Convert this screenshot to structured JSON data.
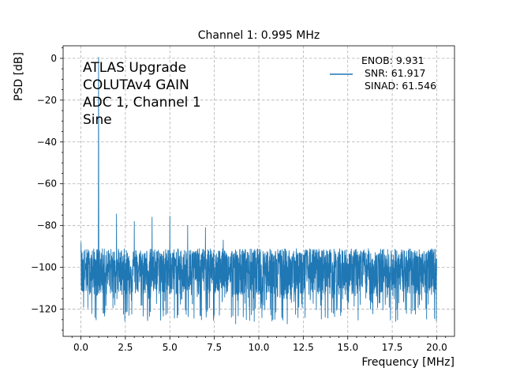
{
  "chart_data": {
    "type": "line",
    "title": "Channel 1: 0.995 MHz",
    "xlabel": "Frequency [MHz]",
    "ylabel": "PSD [dB]",
    "xlim": [
      -1.0,
      21.0
    ],
    "ylim": [
      -133,
      6
    ],
    "xticks": [
      0.0,
      2.5,
      5.0,
      7.5,
      10.0,
      12.5,
      15.0,
      17.5,
      20.0
    ],
    "xtick_labels": [
      "0.0",
      "2.5",
      "5.0",
      "7.5",
      "10.0",
      "12.5",
      "15.0",
      "17.5",
      "20.0"
    ],
    "yticks": [
      0,
      -20,
      -40,
      -60,
      -80,
      -100,
      -120
    ],
    "ytick_labels": [
      "0",
      "−20",
      "−40",
      "−60",
      "−80",
      "−100",
      "−120"
    ],
    "grid": true,
    "legend": {
      "placement": "top-right",
      "entry_lines": [
        "ENOB: 9.931",
        " SNR: 61.917",
        " SINAD: 61.546"
      ]
    },
    "annotation_lines": [
      "ATLAS Upgrade",
      "COLUTAv4 GAIN",
      "ADC 1, Channel 1",
      "Sine"
    ],
    "series": [
      {
        "color": "#1f77b4",
        "x_range": [
          0.0,
          20.0
        ],
        "noise_floor_db": -101,
        "noise_upper_db": -91,
        "noise_lower_db": -126,
        "peaks": [
          {
            "x": 0.995,
            "y": 0.5
          },
          {
            "x": 2.0,
            "y": -74.5
          },
          {
            "x": 3.0,
            "y": -78
          },
          {
            "x": 4.0,
            "y": -76
          },
          {
            "x": 5.0,
            "y": -75.5
          },
          {
            "x": 6.0,
            "y": -80
          },
          {
            "x": 7.0,
            "y": -81
          },
          {
            "x": 8.0,
            "y": -87
          }
        ],
        "min_spikes": [
          {
            "x": 0.8,
            "y": -124
          },
          {
            "x": 1.3,
            "y": -122
          },
          {
            "x": 2.6,
            "y": -121
          },
          {
            "x": 4.0,
            "y": -122
          },
          {
            "x": 6.7,
            "y": -123
          },
          {
            "x": 8.7,
            "y": -127
          },
          {
            "x": 9.3,
            "y": -125
          },
          {
            "x": 11.6,
            "y": -127
          },
          {
            "x": 12.2,
            "y": -124
          },
          {
            "x": 14.6,
            "y": -123
          },
          {
            "x": 17.8,
            "y": -125
          },
          {
            "x": 18.3,
            "y": -122
          }
        ]
      }
    ]
  }
}
